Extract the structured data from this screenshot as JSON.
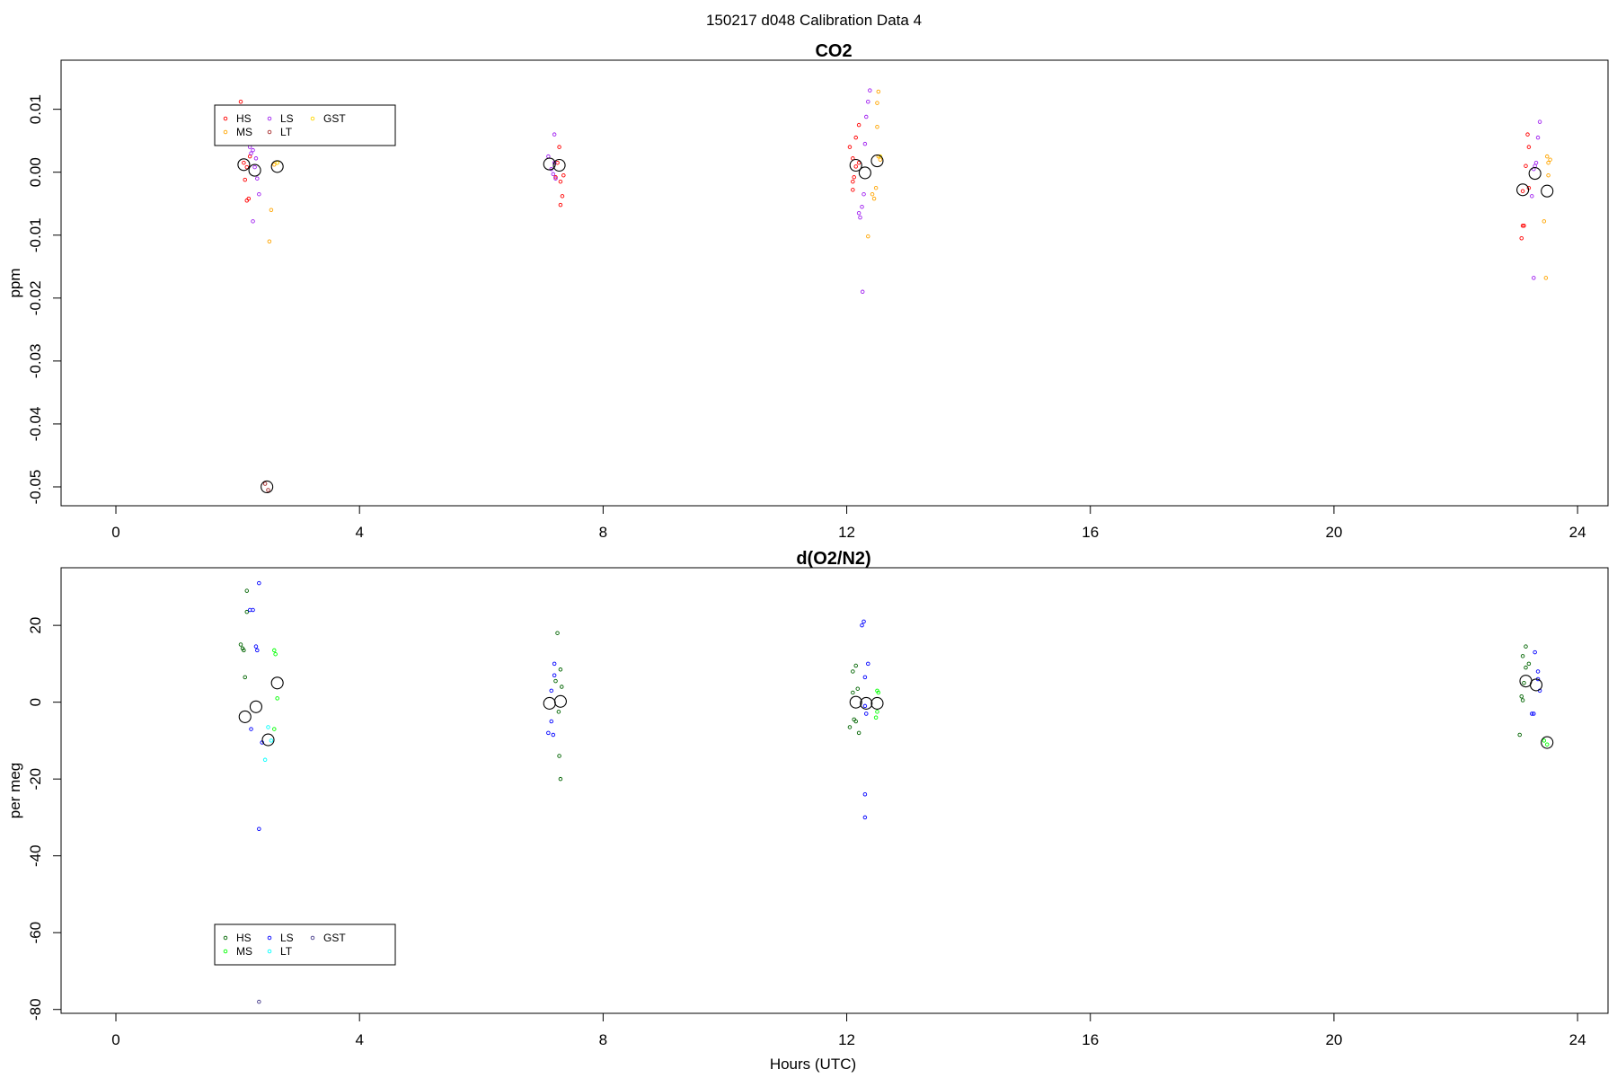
{
  "figure_title": "150217   d048   Calibration Data 4",
  "xlabel": "Hours (UTC)",
  "chart_data": [
    {
      "type": "scatter",
      "title": "CO2",
      "ylabel": "ppm",
      "xlim": [
        -0.9,
        24.5
      ],
      "ylim": [
        -0.053,
        0.0178
      ],
      "xticks": [
        0,
        4,
        8,
        12,
        16,
        20,
        24
      ],
      "yticks": [
        0.01,
        0.0,
        -0.01,
        -0.02,
        -0.03,
        -0.04,
        -0.05
      ],
      "ytick_labels": [
        "0.01",
        "0.00",
        "-0.01",
        "-0.02",
        "-0.03",
        "-0.04",
        "-0.05"
      ],
      "legend": {
        "placement": "top-left",
        "entries": [
          {
            "label": "HS",
            "color": "#ff0000"
          },
          {
            "label": "MS",
            "color": "#ffa500"
          },
          {
            "label": "LS",
            "color": "#a020f0"
          },
          {
            "label": "LT",
            "color": "#a52a2a"
          },
          {
            "label": "GST",
            "color": "#ffd700"
          }
        ]
      },
      "series": [
        {
          "name": "HS",
          "color": "#ff0000",
          "points": [
            [
              2.05,
              0.0112
            ],
            [
              2.1,
              0.0015
            ],
            [
              2.12,
              -0.0012
            ],
            [
              2.15,
              -0.0045
            ],
            [
              2.18,
              -0.0042
            ],
            [
              2.2,
              0.0025
            ],
            [
              2.15,
              0.0008
            ],
            [
              7.25,
              0.0015
            ],
            [
              7.28,
              0.004
            ],
            [
              7.22,
              -0.0008
            ],
            [
              7.3,
              -0.0015
            ],
            [
              7.33,
              -0.0038
            ],
            [
              7.3,
              -0.0052
            ],
            [
              7.35,
              -0.0005
            ],
            [
              12.05,
              0.004
            ],
            [
              12.1,
              0.0022
            ],
            [
              12.1,
              -0.0015
            ],
            [
              12.12,
              -0.0008
            ],
            [
              12.15,
              0.0055
            ],
            [
              12.1,
              -0.0028
            ],
            [
              12.2,
              0.0015
            ],
            [
              12.2,
              0.0075
            ],
            [
              12.15,
              0.0009
            ],
            [
              23.1,
              -0.0085
            ],
            [
              23.12,
              -0.0085
            ],
            [
              23.08,
              -0.0105
            ],
            [
              23.15,
              0.001
            ],
            [
              23.18,
              0.006
            ],
            [
              23.2,
              0.004
            ],
            [
              23.1,
              -0.003
            ],
            [
              23.2,
              -0.0025
            ]
          ]
        },
        {
          "name": "MS",
          "color": "#ffa500",
          "points": [
            [
              2.55,
              -0.006
            ],
            [
              2.52,
              -0.011
            ],
            [
              2.6,
              0.0012
            ],
            [
              2.65,
              0.0015
            ],
            [
              12.35,
              -0.0102
            ],
            [
              12.42,
              -0.0035
            ],
            [
              12.45,
              -0.0042
            ],
            [
              12.48,
              -0.0025
            ],
            [
              12.5,
              0.0072
            ],
            [
              12.5,
              0.011
            ],
            [
              12.52,
              0.0128
            ],
            [
              12.52,
              0.0025
            ],
            [
              12.55,
              0.002
            ],
            [
              23.45,
              -0.0078
            ],
            [
              23.48,
              -0.0168
            ],
            [
              23.5,
              0.0025
            ],
            [
              23.52,
              0.0015
            ],
            [
              23.55,
              0.002
            ],
            [
              23.52,
              -0.0005
            ]
          ]
        },
        {
          "name": "LS",
          "color": "#a020f0",
          "points": [
            [
              2.2,
              0.004
            ],
            [
              2.22,
              0.003
            ],
            [
              2.25,
              0.0035
            ],
            [
              2.3,
              0.0022
            ],
            [
              2.32,
              -0.001
            ],
            [
              2.35,
              -0.0035
            ],
            [
              2.25,
              -0.0078
            ],
            [
              2.28,
              0.0008
            ],
            [
              7.1,
              0.0025
            ],
            [
              7.15,
              0.0005
            ],
            [
              7.18,
              -0.0003
            ],
            [
              7.2,
              0.0015
            ],
            [
              7.2,
              0.006
            ],
            [
              7.22,
              -0.001
            ],
            [
              12.2,
              -0.0065
            ],
            [
              12.22,
              -0.0072
            ],
            [
              12.25,
              -0.0055
            ],
            [
              12.28,
              -0.0035
            ],
            [
              12.3,
              0.0045
            ],
            [
              12.32,
              0.0088
            ],
            [
              12.35,
              0.0112
            ],
            [
              12.38,
              0.013
            ],
            [
              12.26,
              -0.019
            ],
            [
              23.25,
              -0.0038
            ],
            [
              23.28,
              0.0005
            ],
            [
              23.3,
              0.001
            ],
            [
              23.32,
              0.0015
            ],
            [
              23.35,
              0.0055
            ],
            [
              23.38,
              0.008
            ],
            [
              23.28,
              -0.0168
            ]
          ]
        },
        {
          "name": "LT",
          "color": "#a52a2a",
          "points": [
            [
              2.45,
              -0.0495
            ],
            [
              2.5,
              -0.0505
            ]
          ]
        },
        {
          "name": "GST",
          "color": "#ffd700",
          "points": [
            [
              2.65,
              0.0015
            ],
            [
              12.55,
              0.0025
            ]
          ]
        },
        {
          "name": "mean",
          "color": "#000000",
          "marker": "large-open-circle",
          "points": [
            [
              2.1,
              0.0012
            ],
            [
              2.28,
              0.0003
            ],
            [
              2.48,
              -0.05
            ],
            [
              2.65,
              0.0009
            ],
            [
              7.12,
              0.0013
            ],
            [
              7.28,
              0.0011
            ],
            [
              12.15,
              0.0011
            ],
            [
              12.3,
              -0.0001
            ],
            [
              12.5,
              0.0018
            ],
            [
              23.1,
              -0.0028
            ],
            [
              23.3,
              -0.0002
            ],
            [
              23.5,
              -0.003
            ]
          ]
        }
      ]
    },
    {
      "type": "scatter",
      "title": "d(O2/N2)",
      "ylabel": "per meg",
      "xlim": [
        -0.9,
        24.5
      ],
      "ylim": [
        -81,
        35
      ],
      "xticks": [
        0,
        4,
        8,
        12,
        16,
        20,
        24
      ],
      "yticks": [
        20,
        0,
        -20,
        -40,
        -60,
        -80
      ],
      "ytick_labels": [
        "20",
        "0",
        "-20",
        "-40",
        "-60",
        "-80"
      ],
      "legend": {
        "placement": "bottom-left",
        "entries": [
          {
            "label": "HS",
            "color": "#006400"
          },
          {
            "label": "MS",
            "color": "#00ff00"
          },
          {
            "label": "LS",
            "color": "#0000ff"
          },
          {
            "label": "LT",
            "color": "#00ffff"
          },
          {
            "label": "GST",
            "color": "#483d8b"
          }
        ]
      },
      "series": [
        {
          "name": "HS",
          "color": "#006400",
          "points": [
            [
              2.05,
              15
            ],
            [
              2.08,
              14
            ],
            [
              2.1,
              13.5
            ],
            [
              2.12,
              6.5
            ],
            [
              2.15,
              29
            ],
            [
              2.15,
              23.5
            ],
            [
              7.22,
              5.5
            ],
            [
              7.25,
              18
            ],
            [
              7.3,
              8.5
            ],
            [
              7.32,
              4
            ],
            [
              7.28,
              -14
            ],
            [
              7.3,
              -20
            ],
            [
              7.27,
              -2.5
            ],
            [
              12.1,
              8
            ],
            [
              12.15,
              9.5
            ],
            [
              12.18,
              3.5
            ],
            [
              12.1,
              2.5
            ],
            [
              12.12,
              -4.5
            ],
            [
              12.15,
              -5
            ],
            [
              12.05,
              -6.5
            ],
            [
              12.2,
              -8
            ],
            [
              23.05,
              -8.5
            ],
            [
              23.1,
              12
            ],
            [
              23.15,
              14.5
            ],
            [
              23.15,
              9
            ],
            [
              23.12,
              5
            ],
            [
              23.1,
              0.5
            ],
            [
              23.08,
              1.5
            ],
            [
              23.2,
              10
            ]
          ]
        },
        {
          "name": "MS",
          "color": "#00ff00",
          "points": [
            [
              2.6,
              13.5
            ],
            [
              2.62,
              12.5
            ],
            [
              2.65,
              1
            ],
            [
              2.6,
              -7
            ],
            [
              12.5,
              3
            ],
            [
              12.52,
              2.5
            ],
            [
              12.5,
              -2.5
            ],
            [
              12.48,
              -4
            ],
            [
              23.45,
              -10
            ],
            [
              23.5,
              -11
            ]
          ]
        },
        {
          "name": "LS",
          "color": "#0000ff",
          "points": [
            [
              2.2,
              24
            ],
            [
              2.25,
              24
            ],
            [
              2.3,
              14.5
            ],
            [
              2.32,
              13.5
            ],
            [
              2.22,
              -7
            ],
            [
              2.35,
              31
            ],
            [
              2.4,
              -10.5
            ],
            [
              2.35,
              -33
            ],
            [
              7.1,
              -8
            ],
            [
              7.15,
              -5
            ],
            [
              7.18,
              -8.5
            ],
            [
              7.2,
              10
            ],
            [
              7.2,
              7
            ],
            [
              7.15,
              3
            ],
            [
              12.25,
              20
            ],
            [
              12.28,
              21
            ],
            [
              12.3,
              6.5
            ],
            [
              12.35,
              10
            ],
            [
              12.32,
              -3
            ],
            [
              12.3,
              -24
            ],
            [
              12.3,
              -30
            ],
            [
              12.3,
              -1
            ],
            [
              23.25,
              -3
            ],
            [
              23.28,
              -3
            ],
            [
              23.3,
              13
            ],
            [
              23.35,
              8
            ],
            [
              23.35,
              6
            ],
            [
              23.38,
              3
            ]
          ]
        },
        {
          "name": "LT",
          "color": "#00ffff",
          "points": [
            [
              2.45,
              -15
            ],
            [
              2.5,
              -6.5
            ],
            [
              2.55,
              -10
            ]
          ]
        },
        {
          "name": "GST",
          "color": "#483d8b",
          "points": [
            [
              2.35,
              -78
            ]
          ]
        },
        {
          "name": "mean",
          "color": "#000000",
          "marker": "large-open-circle",
          "points": [
            [
              2.12,
              -3.8
            ],
            [
              2.3,
              -1.2
            ],
            [
              2.5,
              -9.8
            ],
            [
              2.65,
              5
            ],
            [
              7.12,
              -0.3
            ],
            [
              7.3,
              0.2
            ],
            [
              12.15,
              0
            ],
            [
              12.32,
              -0.3
            ],
            [
              12.5,
              -0.3
            ],
            [
              23.15,
              5.5
            ],
            [
              23.32,
              4.5
            ],
            [
              23.5,
              -10.5
            ]
          ]
        }
      ]
    }
  ]
}
